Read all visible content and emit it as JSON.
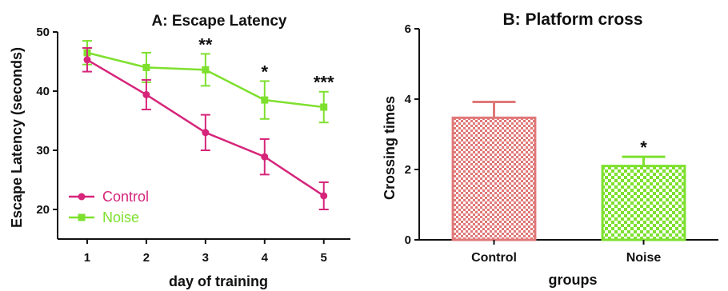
{
  "chart_data": [
    {
      "type": "line",
      "title": "A: Escape Latency",
      "xlabel": "day of training",
      "ylabel": "Escape Latency (seconds)",
      "x": [
        1,
        2,
        3,
        4,
        5
      ],
      "xlim": [
        0.5,
        5.45
      ],
      "ylim": [
        15,
        50
      ],
      "yticks": [
        20,
        30,
        40,
        50
      ],
      "legend_position": "bottom-left",
      "series": [
        {
          "name": "Control",
          "color": "#d6257a",
          "marker": "circle",
          "values": [
            45.3,
            39.4,
            33.0,
            28.9,
            22.3
          ],
          "errors": [
            2.0,
            2.5,
            3.0,
            3.0,
            2.3
          ]
        },
        {
          "name": "Noise",
          "color": "#7ee02e",
          "marker": "square",
          "values": [
            46.5,
            44.0,
            43.6,
            38.5,
            37.3
          ],
          "errors": [
            2.0,
            2.5,
            2.7,
            3.2,
            2.6
          ]
        }
      ],
      "annotations": [
        {
          "x": 3,
          "text": "**"
        },
        {
          "x": 4,
          "text": "*"
        },
        {
          "x": 5,
          "text": "***"
        }
      ]
    },
    {
      "type": "bar",
      "title": "B: Platform cross",
      "xlabel": "groups",
      "ylabel": "Crossing times",
      "categories": [
        "Control",
        "Noise"
      ],
      "values": [
        3.47,
        2.1
      ],
      "errors": [
        0.45,
        0.26
      ],
      "colors": [
        "#e07878",
        "#7ee02e"
      ],
      "fill_pattern": "checkered",
      "ylim": [
        0,
        6
      ],
      "yticks": [
        0,
        2,
        4,
        6
      ],
      "annotations": [
        {
          "category": "Noise",
          "text": "*"
        }
      ]
    }
  ]
}
